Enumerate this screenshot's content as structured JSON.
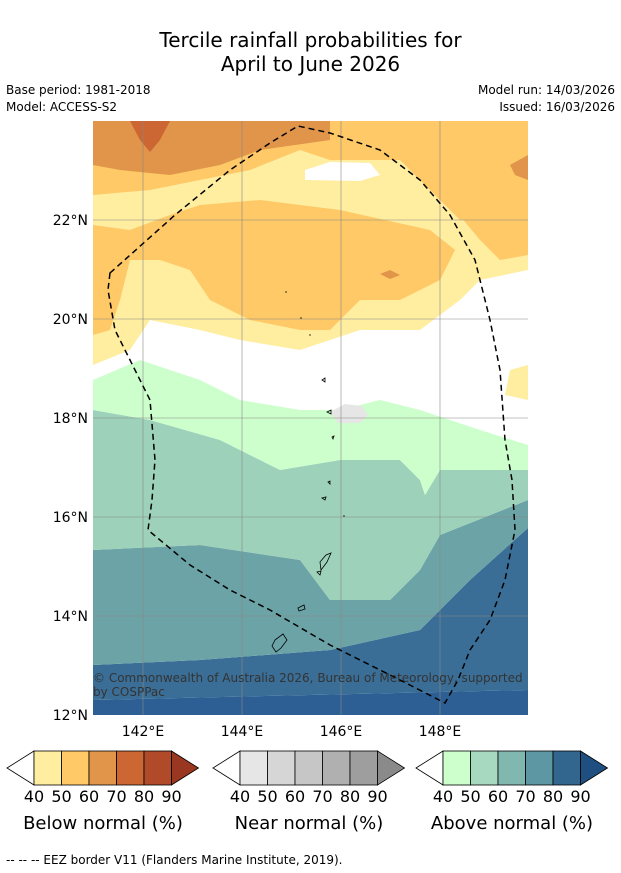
{
  "title": {
    "line1": "Tercile rainfall probabilities for",
    "line2": "April to June 2026"
  },
  "meta": {
    "base_period": "Base period: 1981-2018",
    "model": "Model: ACCESS-S2",
    "model_run": "Model run: 14/03/2026",
    "issued": "Issued: 16/03/2026"
  },
  "map": {
    "lat_labels": [
      "22°N",
      "20°N",
      "18°N",
      "16°N",
      "14°N",
      "12°N"
    ],
    "lon_labels": [
      "142°E",
      "144°E",
      "146°E",
      "148°E"
    ],
    "copyright": "© Commonwealth of Australia 2026, Bureau of Meteorology, supported by COSPPac",
    "colors": {
      "below40": "#ffeda0",
      "below50": "#fec966",
      "below60": "#e0954a",
      "below70": "#cc6633",
      "below80": "#b04a28",
      "below90": "#9a3720",
      "near50": "#e6e6e6",
      "above40": "#ccffcc",
      "above50": "#a6d9bf",
      "above60": "#80b8b0",
      "above70": "#5c97a3",
      "above80": "#33668f",
      "above90": "#1f4f80"
    }
  },
  "colorbars": [
    {
      "name": "Below normal (%)",
      "ticks": [
        "40",
        "50",
        "60",
        "70",
        "80",
        "90"
      ],
      "colors": [
        "#ffeda0",
        "#fec966",
        "#e0954a",
        "#cc6633",
        "#b04a28"
      ],
      "end": "#9a3720"
    },
    {
      "name": "Near normal (%)",
      "ticks": [
        "40",
        "50",
        "60",
        "70",
        "80",
        "90"
      ],
      "colors": [
        "#e6e6e6",
        "#d6d6d6",
        "#c6c6c6",
        "#b0b0b0",
        "#9e9e9e"
      ],
      "end": "#8a8a8a"
    },
    {
      "name": "Above normal (%)",
      "ticks": [
        "40",
        "50",
        "60",
        "70",
        "80",
        "90"
      ],
      "colors": [
        "#ccffcc",
        "#a6d9bf",
        "#80b8b0",
        "#5c97a3",
        "#33668f"
      ],
      "end": "#1f4f80"
    }
  ],
  "footnote": "--  --  -- EEZ border V11 (Flanders Marine Institute, 2019)."
}
